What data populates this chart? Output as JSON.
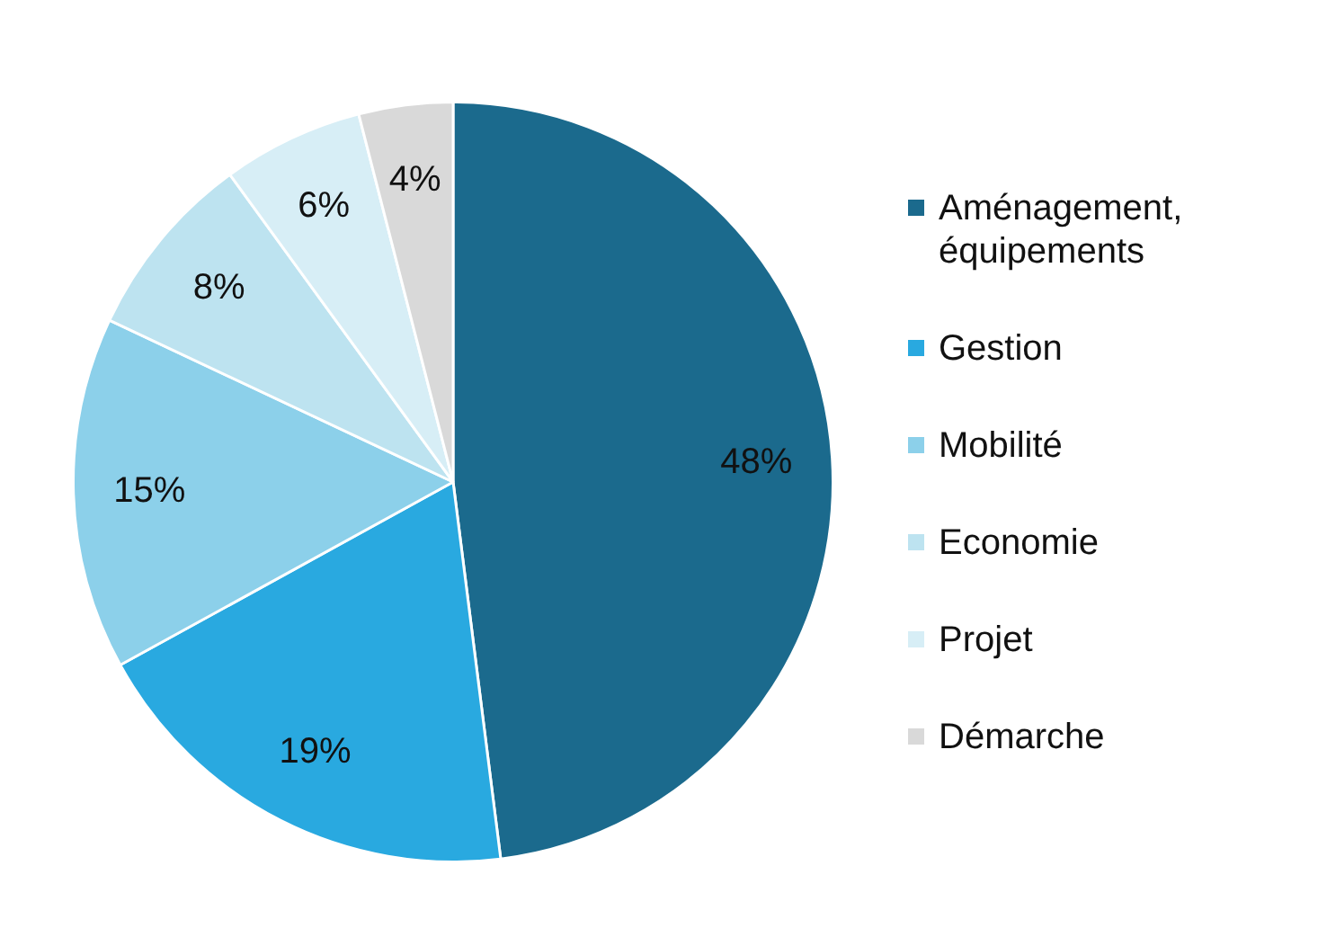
{
  "chart_data": {
    "type": "pie",
    "categories": [
      "Aménagement, équipements",
      "Gestion",
      "Mobilité",
      "Economie",
      "Projet",
      "Démarche"
    ],
    "values": [
      48,
      19,
      15,
      8,
      6,
      4
    ],
    "colors": [
      "#1b6a8d",
      "#29a9e0",
      "#8cd0ea",
      "#bde3f0",
      "#d7eef6",
      "#d9d9d9"
    ],
    "value_labels": [
      "48%",
      "19%",
      "15%",
      "8%",
      "6%",
      "4%"
    ],
    "legend": "right"
  }
}
